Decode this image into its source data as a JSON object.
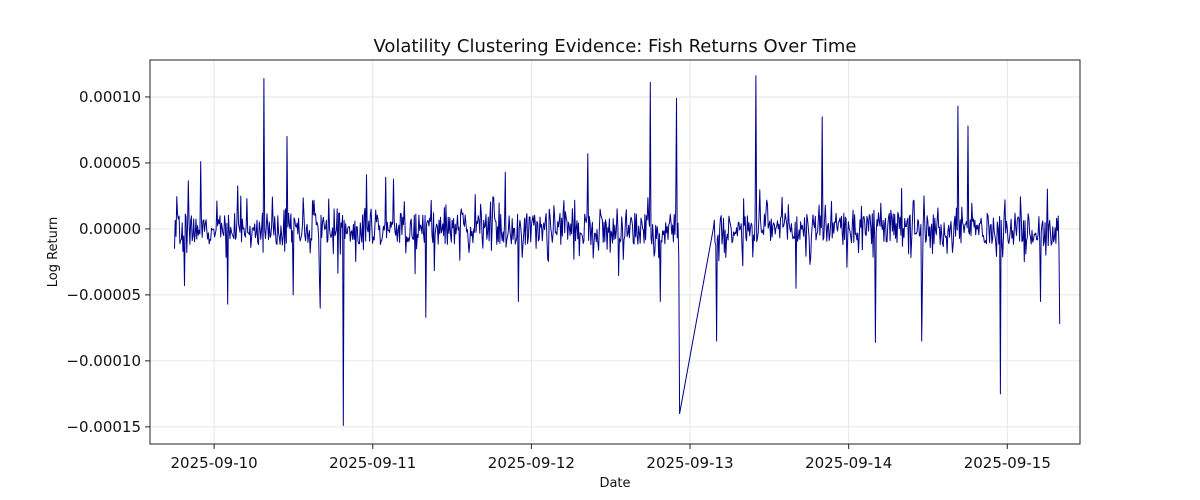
{
  "chart_data": {
    "type": "line",
    "title": "Volatility Clustering Evidence: Fish Returns Over Time",
    "xlabel": "Date",
    "ylabel": "Log Return",
    "x_ticks": [
      "2025-09-10",
      "2025-09-11",
      "2025-09-12",
      "2025-09-13",
      "2025-09-14",
      "2025-09-15"
    ],
    "y_ticks": [
      "0.00010",
      "0.00005",
      "0.00000",
      "−0.00005",
      "−0.00010",
      "−0.00015"
    ],
    "y_tick_values": [
      0.0001,
      5e-05,
      0.0,
      -5e-05,
      -0.0001,
      -0.00015
    ],
    "xlim": [
      "2025-09-09T14:18",
      "2025-09-15T11:00"
    ],
    "ylim": [
      -0.000163,
      0.000128
    ],
    "grid": true,
    "line_color": "#00008b",
    "series": [
      {
        "x": [
          "2025-09-09T18:00",
          "2025-09-09T19:30",
          "2025-09-09T22:00",
          "2025-09-10T02:00",
          "2025-09-10T07:30",
          "2025-09-10T11:00",
          "2025-09-10T12:00",
          "2025-09-10T16:00",
          "2025-09-10T19:30",
          "2025-09-10T23:00",
          "2025-09-11T02:00",
          "2025-09-11T08:00",
          "2025-09-11T20:00",
          "2025-09-11T22:00",
          "2025-09-12T08:30",
          "2025-09-12T18:00",
          "2025-09-12T19:30",
          "2025-09-12T22:00",
          "2025-09-13T00:00",
          "2025-09-13T04:00",
          "2025-09-13T10:00",
          "2025-09-13T16:00",
          "2025-09-13T20:00",
          "2025-09-14T04:00",
          "2025-09-14T11:00",
          "2025-09-14T16:30",
          "2025-09-14T18:00",
          "2025-09-14T23:00",
          "2025-09-15T05:00",
          "2025-09-15T08:00"
        ],
        "values": [
          -1.5e-05,
          -4.3e-05,
          5.1e-05,
          -5.7e-05,
          0.000114,
          7e-05,
          -5e-05,
          -6e-05,
          -0.000149,
          4.1e-05,
          3.9e-05,
          -6.7e-05,
          4.3e-05,
          -5.5e-05,
          5.7e-05,
          0.000111,
          -5.5e-05,
          9.9e-05,
          -0.00014,
          -8.5e-05,
          0.000116,
          -4.5e-05,
          8.5e-05,
          -8.6e-05,
          -8.5e-05,
          9.3e-05,
          7.8e-05,
          -0.000125,
          -5.5e-05,
          -7.2e-05
        ]
      }
    ]
  }
}
